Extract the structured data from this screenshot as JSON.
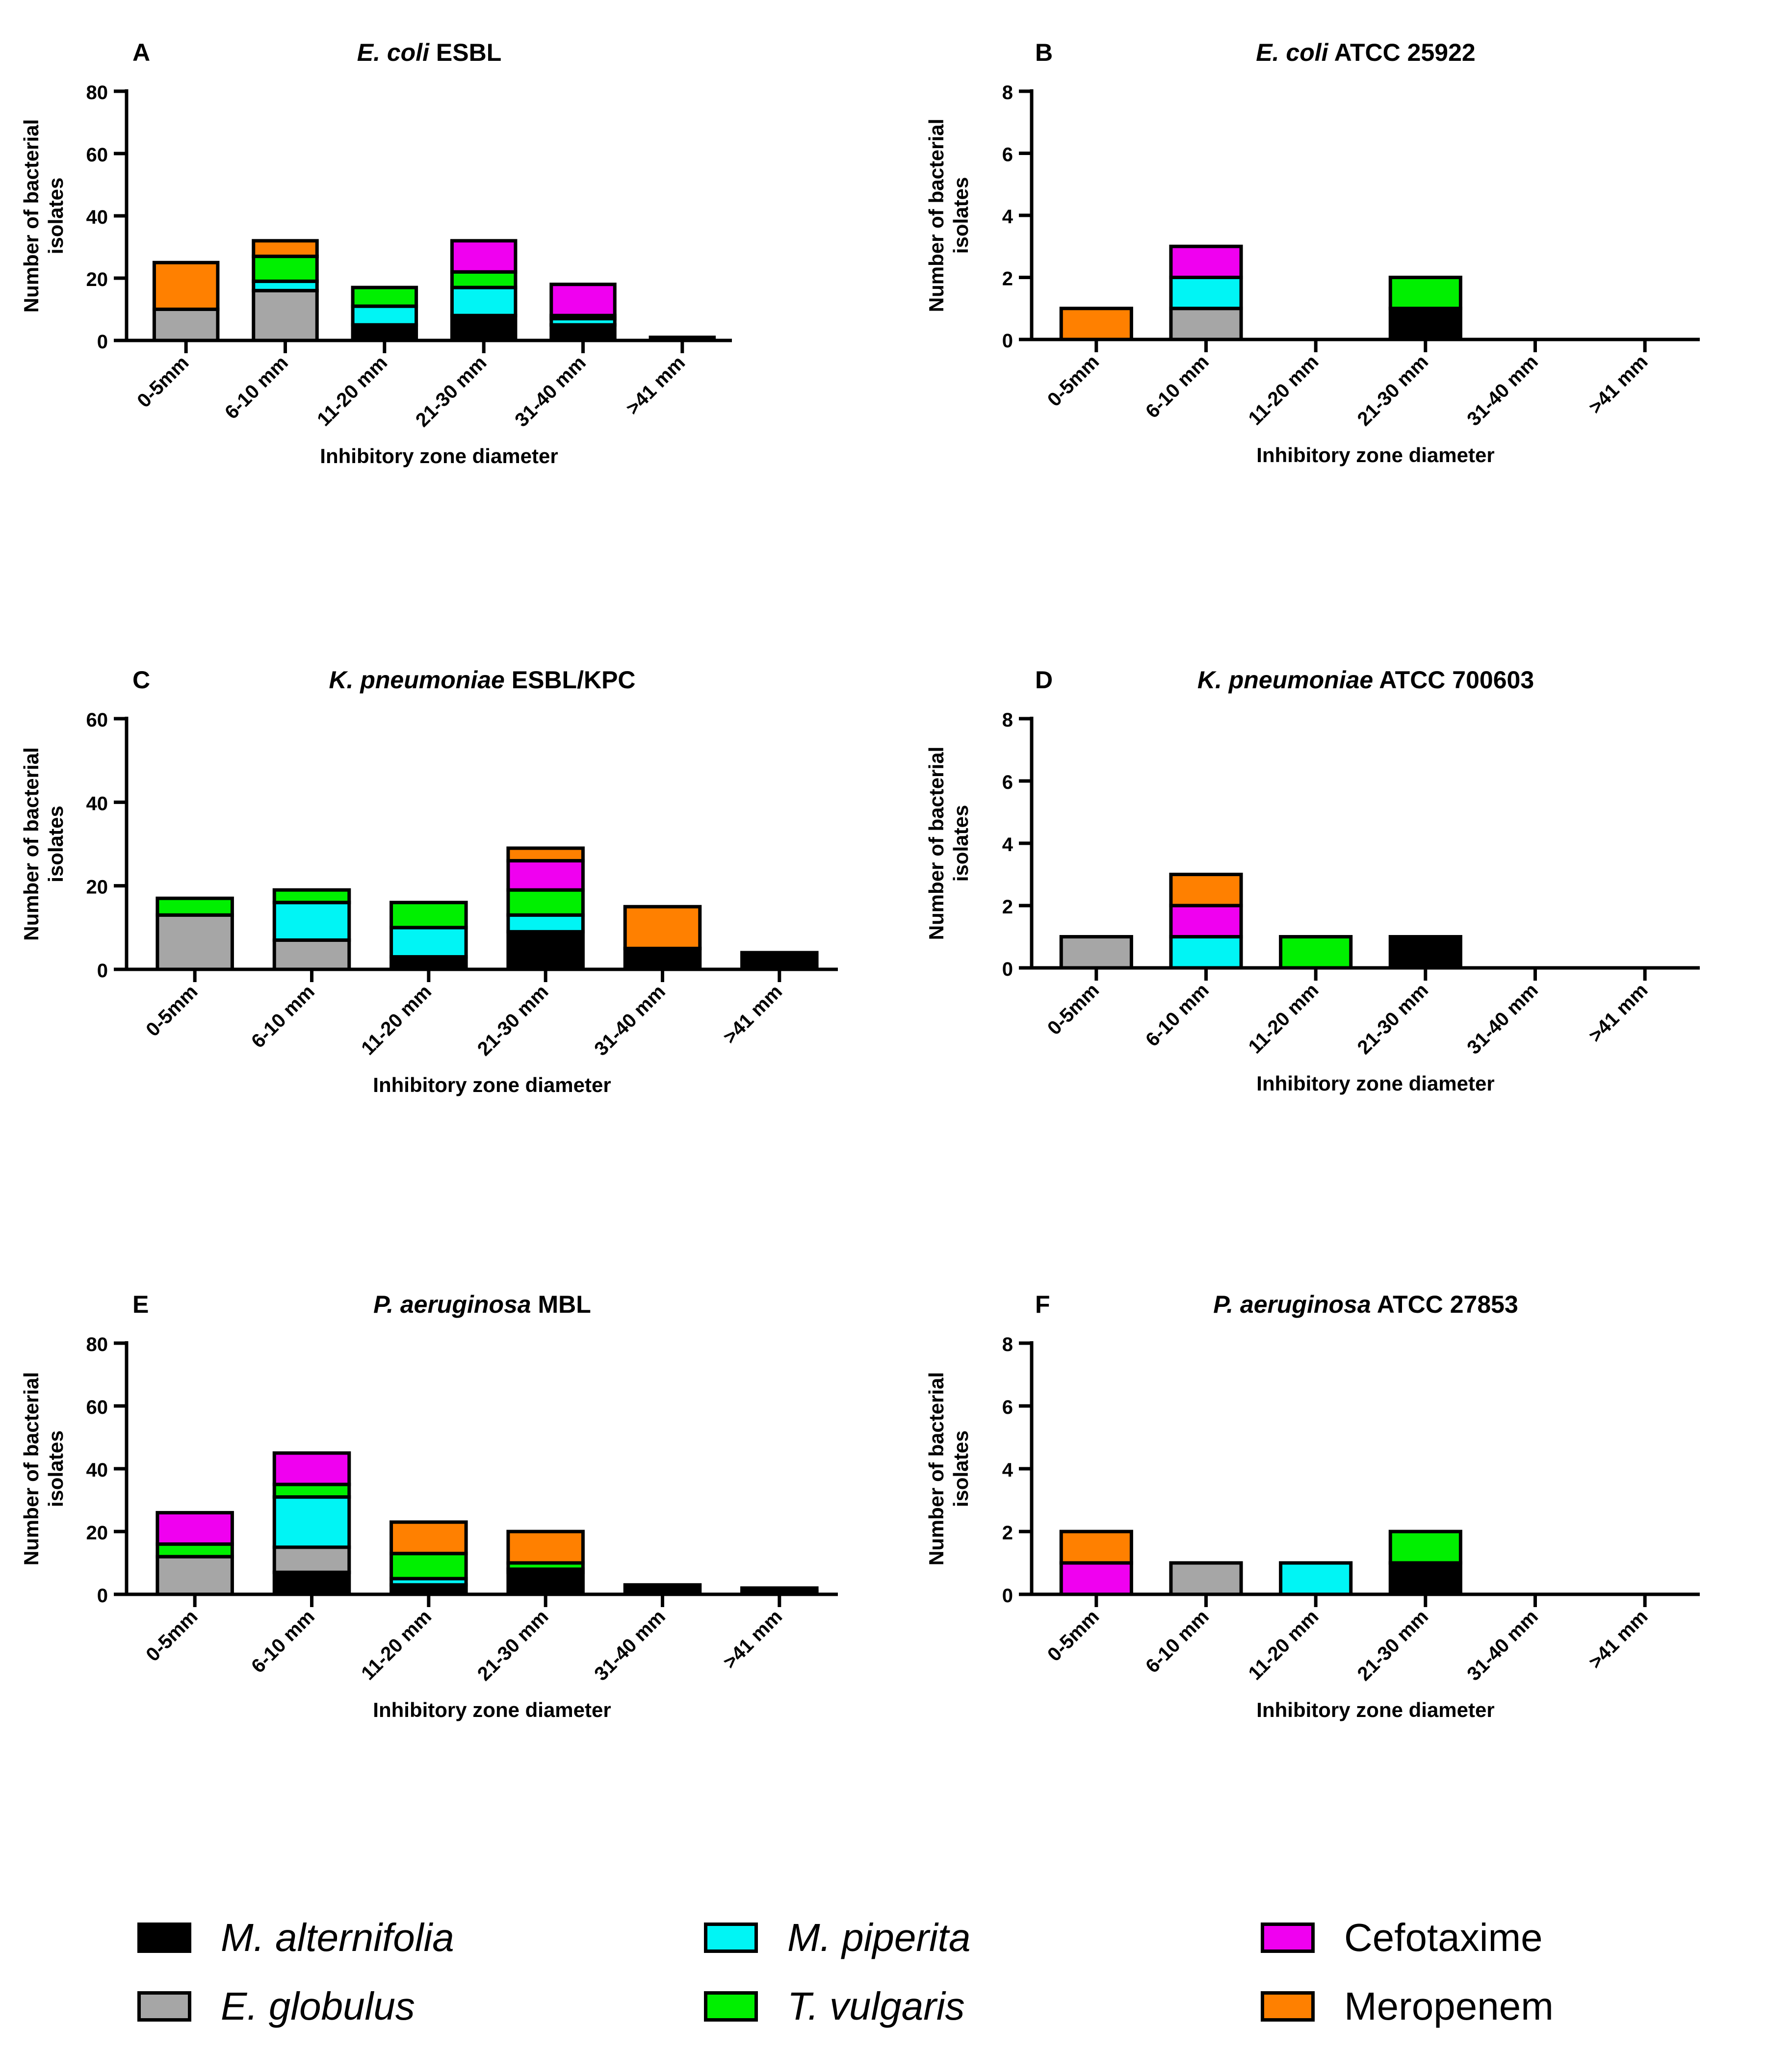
{
  "series_names": [
    "M. alternifolia",
    "E. globulus",
    "M. piperita",
    "T. vulgaris",
    "Cefotaxime",
    "Meropenem"
  ],
  "series_colors": [
    "#000000",
    "#a6a6a6",
    "#00f5f5",
    "#00f000",
    "#f000f0",
    "#ff8000"
  ],
  "legend": {
    "items": [
      {
        "label": "M. alternifolia",
        "color": "#000000",
        "italic": true
      },
      {
        "label": "E. globulus",
        "color": "#a6a6a6",
        "italic": true
      },
      {
        "label": "M. piperita",
        "color": "#00f5f5",
        "italic": true
      },
      {
        "label": "T. vulgaris",
        "color": "#00f000",
        "italic": true
      },
      {
        "label": "Cefotaxime",
        "color": "#f000f0",
        "italic": false
      },
      {
        "label": "Meropenem",
        "color": "#ff8000",
        "italic": false
      }
    ]
  },
  "chart_data": [
    {
      "type": "bar",
      "stacked": true,
      "panel": "A",
      "title_italic": "E. coli",
      "title_rest": " ESBL",
      "xlabel": "Inhibitory zone diameter",
      "ylabel": [
        "Number of bacterial",
        "isolates"
      ],
      "categories": [
        "0-5mm",
        "6-10 mm",
        "11-20 mm",
        "21-30 mm",
        "31-40 mm",
        ">41 mm"
      ],
      "ylim": [
        0,
        80
      ],
      "yticks": [
        0,
        20,
        40,
        60,
        80
      ],
      "series": [
        {
          "name": "M. alternifolia",
          "values": [
            0,
            0,
            5,
            8,
            5,
            1
          ]
        },
        {
          "name": "E. globulus",
          "values": [
            10,
            16,
            0,
            0,
            0,
            0
          ]
        },
        {
          "name": "M. piperita",
          "values": [
            0,
            3,
            6,
            9,
            2,
            0
          ]
        },
        {
          "name": "T. vulgaris",
          "values": [
            0,
            8,
            6,
            5,
            1,
            0
          ]
        },
        {
          "name": "Cefotaxime",
          "values": [
            0,
            0,
            0,
            10,
            10,
            0
          ]
        },
        {
          "name": "Meropenem",
          "values": [
            15,
            5,
            0,
            0,
            0,
            0
          ]
        }
      ]
    },
    {
      "type": "bar",
      "stacked": true,
      "panel": "B",
      "title_italic": "E. coli",
      "title_rest": " ATCC 25922",
      "xlabel": "Inhibitory zone diameter",
      "ylabel": [
        "Number of bacterial",
        "isolates"
      ],
      "categories": [
        "0-5mm",
        "6-10 mm",
        "11-20 mm",
        "21-30 mm",
        "31-40 mm",
        ">41 mm"
      ],
      "ylim": [
        0,
        8
      ],
      "yticks": [
        0,
        2,
        4,
        6,
        8
      ],
      "series": [
        {
          "name": "M. alternifolia",
          "values": [
            0,
            0,
            0,
            1,
            0,
            0
          ]
        },
        {
          "name": "E. globulus",
          "values": [
            0,
            1,
            0,
            0,
            0,
            0
          ]
        },
        {
          "name": "M. piperita",
          "values": [
            0,
            1,
            0,
            0,
            0,
            0
          ]
        },
        {
          "name": "T. vulgaris",
          "values": [
            0,
            0,
            0,
            1,
            0,
            0
          ]
        },
        {
          "name": "Cefotaxime",
          "values": [
            0,
            1,
            0,
            0,
            0,
            0
          ]
        },
        {
          "name": "Meropenem",
          "values": [
            1,
            0,
            0,
            0,
            0,
            0
          ]
        }
      ]
    },
    {
      "type": "bar",
      "stacked": true,
      "panel": "C",
      "title_italic": "K. pneumoniae",
      "title_rest": " ESBL/KPC",
      "xlabel": "Inhibitory zone diameter",
      "ylabel": [
        "Number of bacterial",
        "isolates"
      ],
      "categories": [
        "0-5mm",
        "6-10 mm",
        "11-20 mm",
        "21-30 mm",
        "31-40 mm",
        ">41 mm"
      ],
      "ylim": [
        0,
        60
      ],
      "yticks": [
        0,
        20,
        40,
        60
      ],
      "series": [
        {
          "name": "M. alternifolia",
          "values": [
            0,
            0,
            3,
            9,
            5,
            4
          ]
        },
        {
          "name": "E. globulus",
          "values": [
            13,
            7,
            0,
            0,
            0,
            0
          ]
        },
        {
          "name": "M. piperita",
          "values": [
            0,
            9,
            7,
            4,
            0,
            0
          ]
        },
        {
          "name": "T. vulgaris",
          "values": [
            4,
            3,
            6,
            6,
            0,
            0
          ]
        },
        {
          "name": "Cefotaxime",
          "values": [
            0,
            0,
            0,
            7,
            0,
            0
          ]
        },
        {
          "name": "Meropenem",
          "values": [
            0,
            0,
            0,
            3,
            10,
            0
          ]
        }
      ]
    },
    {
      "type": "bar",
      "stacked": true,
      "panel": "D",
      "title_italic": "K. pneumoniae",
      "title_rest": " ATCC 700603",
      "xlabel": "Inhibitory zone diameter",
      "ylabel": [
        "Number of bacterial",
        "isolates"
      ],
      "categories": [
        "0-5mm",
        "6-10 mm",
        "11-20 mm",
        "21-30 mm",
        "31-40 mm",
        ">41 mm"
      ],
      "ylim": [
        0,
        8
      ],
      "yticks": [
        0,
        2,
        4,
        6,
        8
      ],
      "series": [
        {
          "name": "M. alternifolia",
          "values": [
            0,
            0,
            0,
            1,
            0,
            0
          ]
        },
        {
          "name": "E. globulus",
          "values": [
            1,
            0,
            0,
            0,
            0,
            0
          ]
        },
        {
          "name": "M. piperita",
          "values": [
            0,
            1,
            0,
            0,
            0,
            0
          ]
        },
        {
          "name": "T. vulgaris",
          "values": [
            0,
            0,
            1,
            0,
            0,
            0
          ]
        },
        {
          "name": "Cefotaxime",
          "values": [
            0,
            1,
            0,
            0,
            0,
            0
          ]
        },
        {
          "name": "Meropenem",
          "values": [
            0,
            1,
            0,
            0,
            0,
            0
          ]
        }
      ]
    },
    {
      "type": "bar",
      "stacked": true,
      "panel": "E",
      "title_italic": "P. aeruginosa",
      "title_rest": " MBL",
      "xlabel": "Inhibitory zone diameter",
      "ylabel": [
        "Number of bacterial",
        "isolates"
      ],
      "categories": [
        "0-5mm",
        "6-10 mm",
        "11-20 mm",
        "21-30 mm",
        "31-40 mm",
        ">41 mm"
      ],
      "ylim": [
        0,
        80
      ],
      "yticks": [
        0,
        20,
        40,
        60,
        80
      ],
      "series": [
        {
          "name": "M. alternifolia",
          "values": [
            0,
            7,
            3,
            7,
            3,
            1
          ]
        },
        {
          "name": "E. globulus",
          "values": [
            12,
            8,
            0,
            1,
            0,
            0
          ]
        },
        {
          "name": "M. piperita",
          "values": [
            0,
            16,
            2,
            0,
            0,
            0
          ]
        },
        {
          "name": "T. vulgaris",
          "values": [
            4,
            4,
            8,
            2,
            0,
            1
          ]
        },
        {
          "name": "Cefotaxime",
          "values": [
            10,
            10,
            0,
            0,
            0,
            0
          ]
        },
        {
          "name": "Meropenem",
          "values": [
            0,
            0,
            10,
            10,
            0,
            0
          ]
        }
      ]
    },
    {
      "type": "bar",
      "stacked": true,
      "panel": "F",
      "title_italic": "P. aeruginosa",
      "title_rest": " ATCC 27853",
      "xlabel": "Inhibitory zone diameter",
      "ylabel": [
        "Number of bacterial",
        "isolates"
      ],
      "categories": [
        "0-5mm",
        "6-10 mm",
        "11-20 mm",
        "21-30 mm",
        "31-40 mm",
        ">41 mm"
      ],
      "ylim": [
        0,
        8
      ],
      "yticks": [
        0,
        2,
        4,
        6,
        8
      ],
      "series": [
        {
          "name": "M. alternifolia",
          "values": [
            0,
            0,
            0,
            1,
            0,
            0
          ]
        },
        {
          "name": "E. globulus",
          "values": [
            0,
            1,
            0,
            0,
            0,
            0
          ]
        },
        {
          "name": "M. piperita",
          "values": [
            0,
            0,
            1,
            0,
            0,
            0
          ]
        },
        {
          "name": "T. vulgaris",
          "values": [
            0,
            0,
            0,
            1,
            0,
            0
          ]
        },
        {
          "name": "Cefotaxime",
          "values": [
            1,
            0,
            0,
            0,
            0,
            0
          ]
        },
        {
          "name": "Meropenem",
          "values": [
            1,
            0,
            0,
            0,
            0,
            0
          ]
        }
      ]
    }
  ]
}
